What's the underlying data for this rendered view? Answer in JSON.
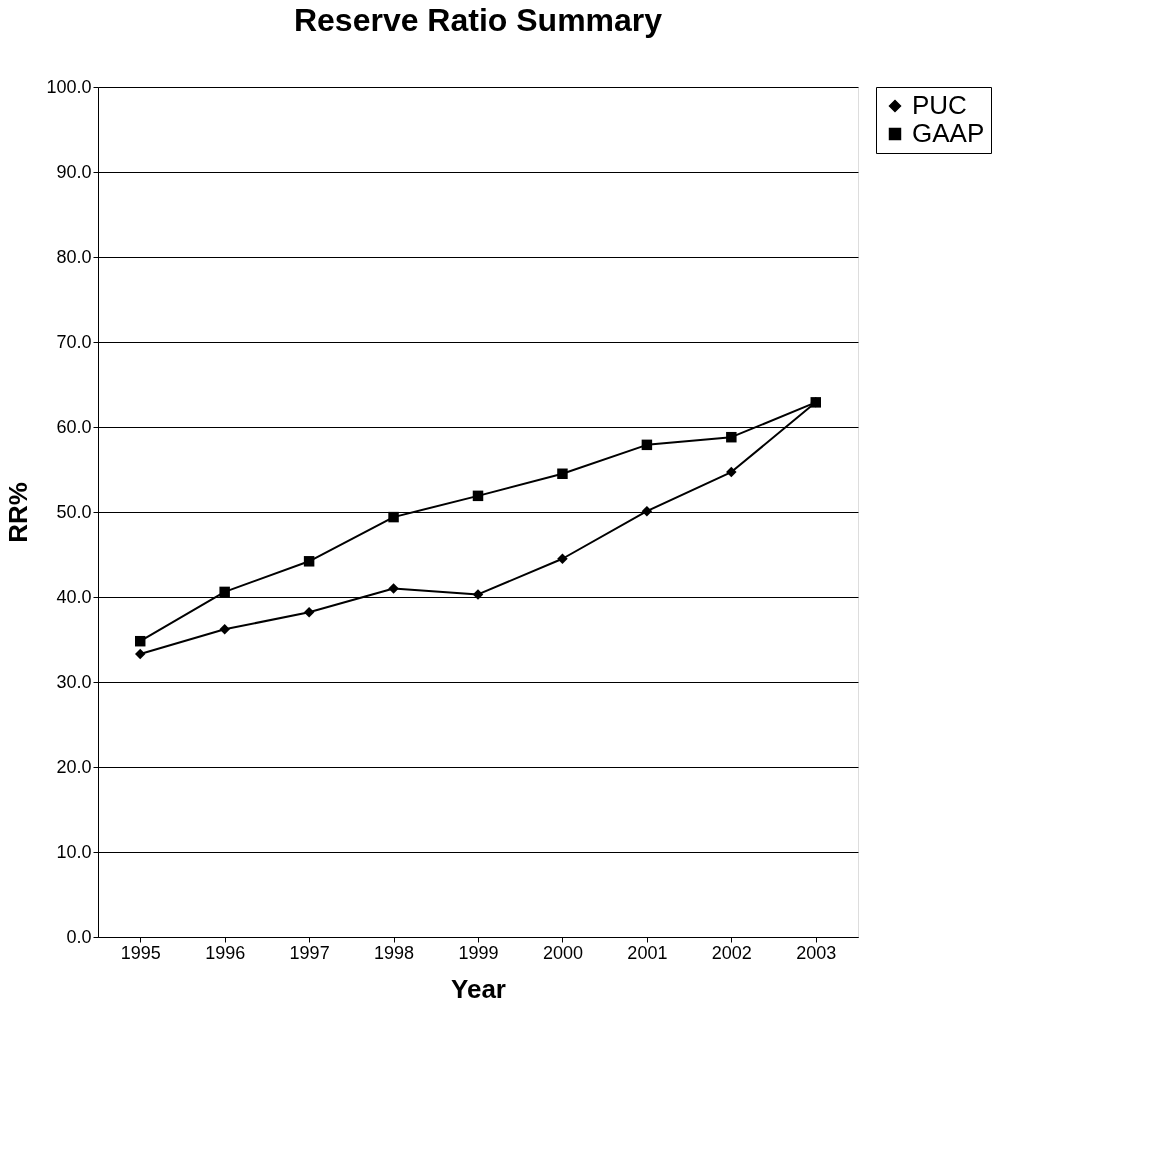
{
  "chart_data": {
    "type": "line",
    "title": "Reserve Ratio Summary",
    "xlabel": "Year",
    "ylabel": "RR%",
    "categories": [
      "1995",
      "1996",
      "1997",
      "1998",
      "1999",
      "2000",
      "2001",
      "2002",
      "2003"
    ],
    "series": [
      {
        "name": "PUC",
        "color": "#000000",
        "marker": "diamond",
        "values": [
          33.3,
          36.2,
          38.2,
          41.0,
          40.3,
          44.5,
          50.1,
          54.7,
          62.9
        ]
      },
      {
        "name": "GAAP",
        "color": "#000000",
        "marker": "square",
        "values": [
          34.8,
          40.6,
          44.2,
          49.4,
          51.9,
          54.5,
          57.9,
          58.8,
          62.9
        ]
      }
    ],
    "ylim": [
      0,
      100
    ],
    "yticks": [
      {
        "value": 0,
        "label": "0.0"
      },
      {
        "value": 10,
        "label": "10.0"
      },
      {
        "value": 20,
        "label": "20.0"
      },
      {
        "value": 30,
        "label": "30.0"
      },
      {
        "value": 40,
        "label": "40.0"
      },
      {
        "value": 50,
        "label": "50.0"
      },
      {
        "value": 60,
        "label": "60.0"
      },
      {
        "value": 70,
        "label": "70.0"
      },
      {
        "value": 80,
        "label": "80.0"
      },
      {
        "value": 90,
        "label": "90.0"
      },
      {
        "value": 100,
        "label": "100.0"
      }
    ],
    "grid": "y",
    "legend": "right",
    "line_style": "solid"
  }
}
